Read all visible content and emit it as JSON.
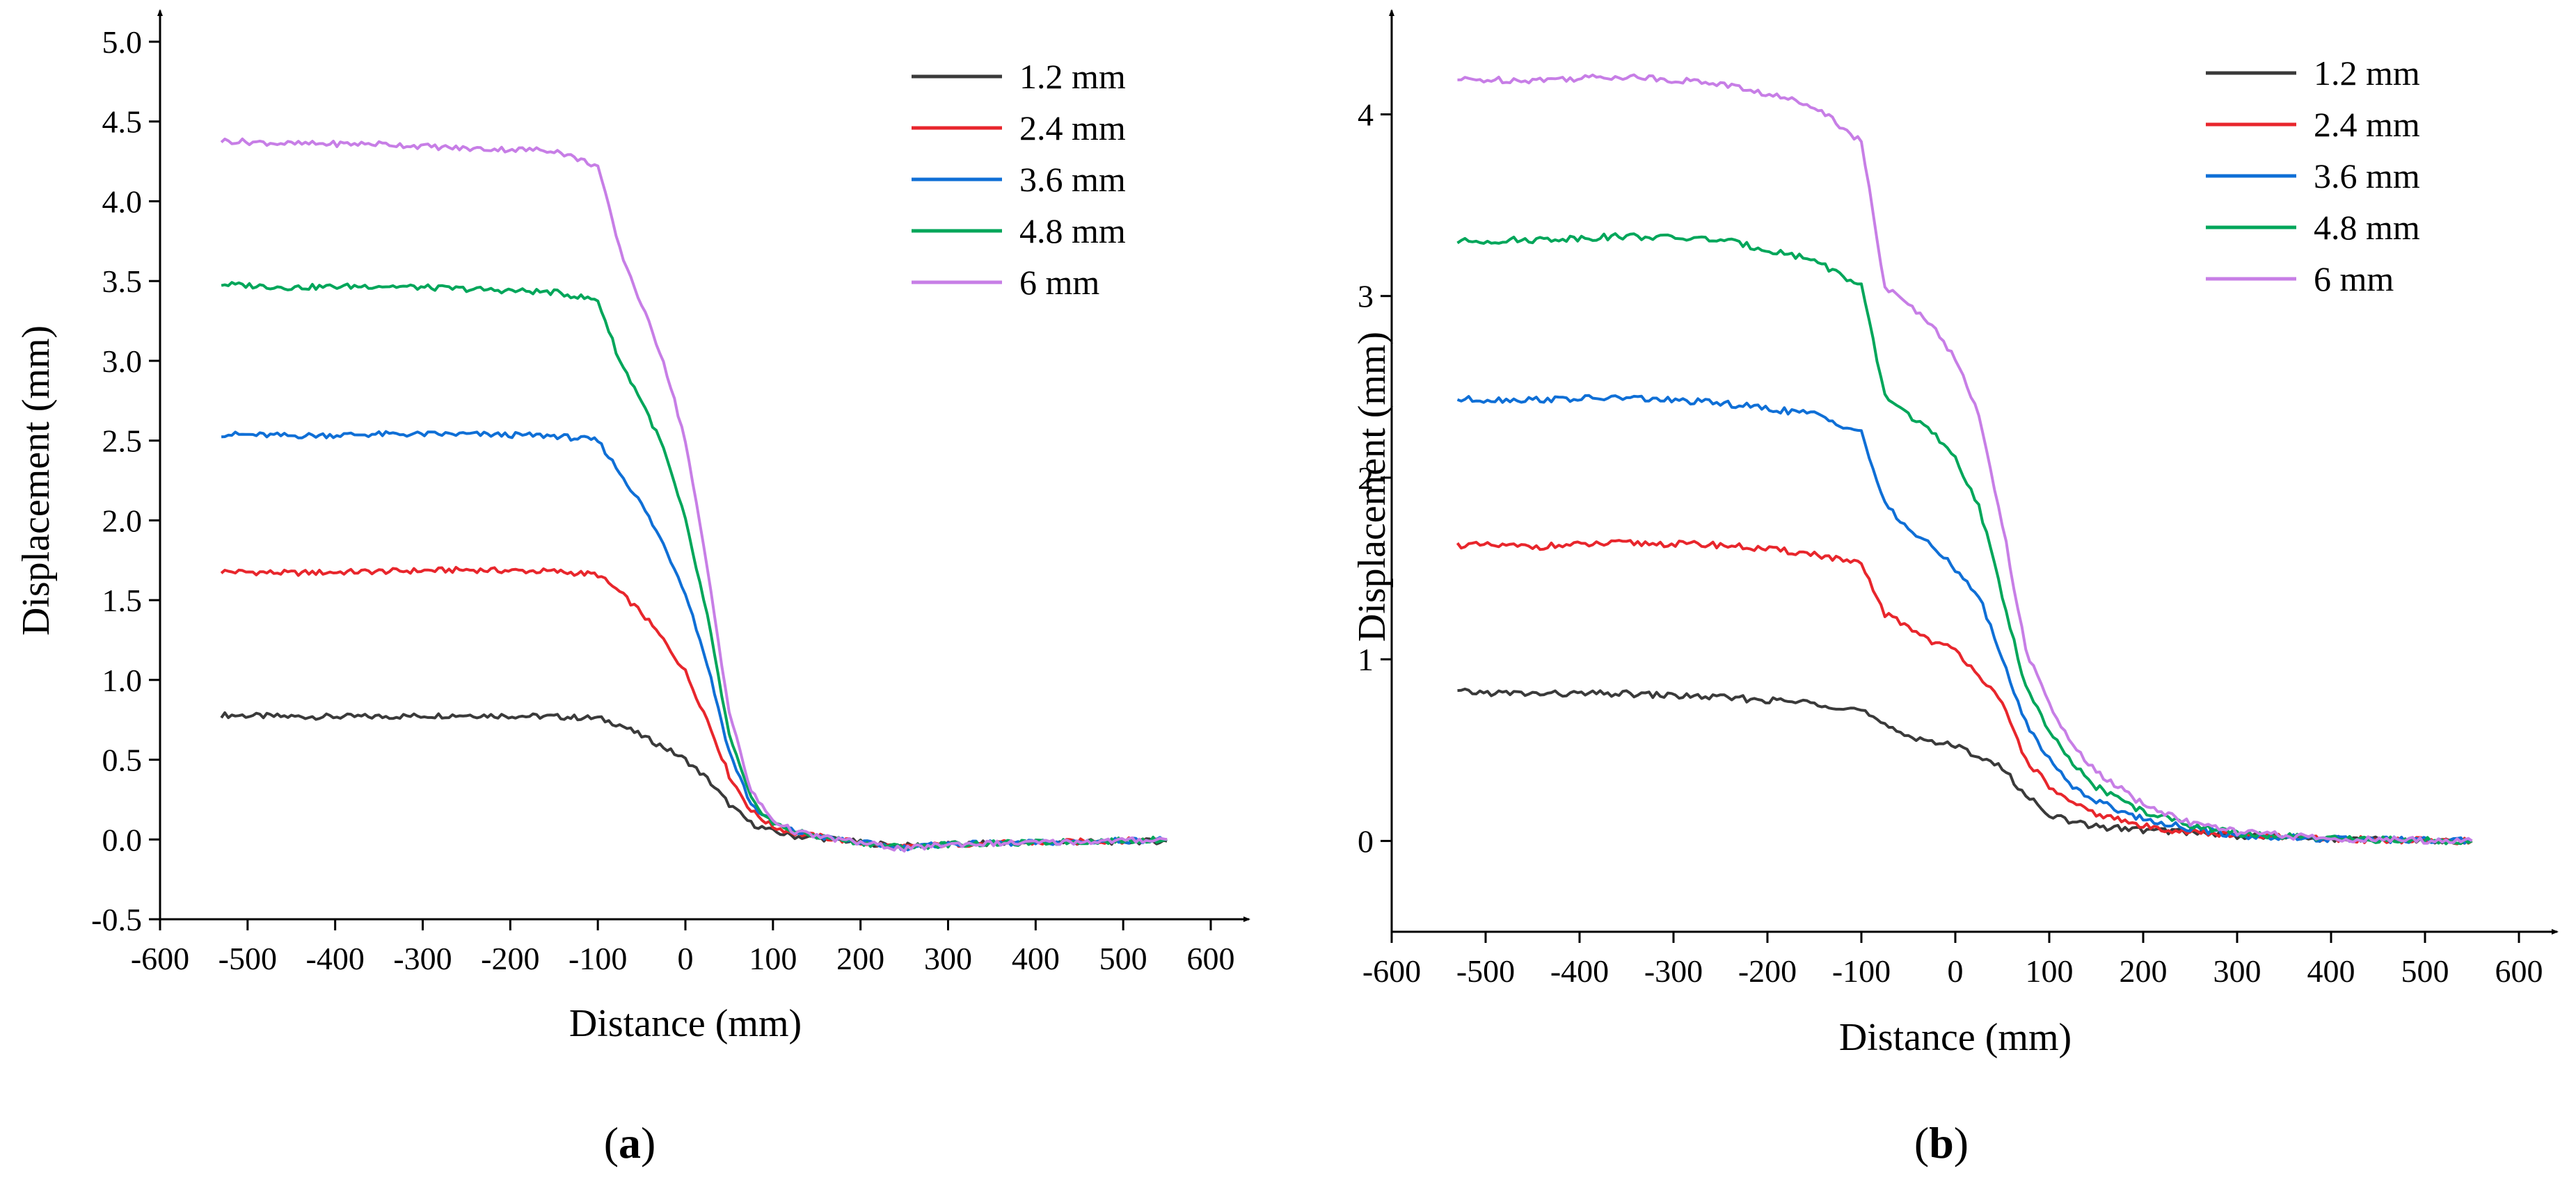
{
  "colors": {
    "1.2 mm": "#3a3a3a",
    "2.4 mm": "#e8262c",
    "3.6 mm": "#0f6fd6",
    "4.8 mm": "#00a65a",
    "6 mm": "#c77ee6"
  },
  "chart_data": [
    {
      "type": "line",
      "caption_open": "(",
      "caption_letter": "a",
      "caption_close": ")",
      "xlabel": "Distance (mm)",
      "ylabel": "Displacement (mm)",
      "xlim": [
        -600,
        600
      ],
      "ylim": [
        -0.5,
        5.0
      ],
      "xticks": [
        -600,
        -500,
        -400,
        -300,
        -200,
        -100,
        0,
        100,
        200,
        300,
        400,
        500,
        600
      ],
      "yticks": [
        "-0.5",
        "0.0",
        "0.5",
        "1.0",
        "1.5",
        "2.0",
        "2.5",
        "3.0",
        "3.5",
        "4.0",
        "4.5",
        "5.0"
      ],
      "legend_position": "top-right",
      "x": [
        -530,
        -450,
        -350,
        -250,
        -150,
        -100,
        -75,
        -50,
        -25,
        0,
        25,
        50,
        75,
        100,
        125,
        150,
        175,
        200,
        250,
        300,
        400,
        550
      ],
      "series": [
        {
          "name": "1.2 mm",
          "values": [
            0.78,
            0.77,
            0.77,
            0.78,
            0.77,
            0.76,
            0.72,
            0.65,
            0.58,
            0.5,
            0.38,
            0.22,
            0.1,
            0.05,
            0.02,
            0.01,
            0.0,
            -0.02,
            -0.04,
            -0.03,
            -0.02,
            -0.01
          ]
        },
        {
          "name": "2.4 mm",
          "values": [
            1.68,
            1.67,
            1.68,
            1.69,
            1.68,
            1.66,
            1.55,
            1.42,
            1.25,
            1.05,
            0.75,
            0.4,
            0.18,
            0.08,
            0.04,
            0.02,
            0.0,
            -0.02,
            -0.05,
            -0.03,
            -0.02,
            0.0
          ]
        },
        {
          "name": "3.6 mm",
          "values": [
            2.54,
            2.53,
            2.54,
            2.54,
            2.53,
            2.5,
            2.3,
            2.1,
            1.85,
            1.55,
            1.1,
            0.55,
            0.22,
            0.1,
            0.05,
            0.02,
            0.0,
            -0.02,
            -0.05,
            -0.03,
            -0.02,
            0.0
          ]
        },
        {
          "name": "4.8 mm",
          "values": [
            3.48,
            3.46,
            3.47,
            3.45,
            3.43,
            3.38,
            3.0,
            2.75,
            2.45,
            2.0,
            1.4,
            0.65,
            0.25,
            0.1,
            0.05,
            0.02,
            0.0,
            -0.02,
            -0.05,
            -0.03,
            -0.02,
            0.0
          ]
        },
        {
          "name": "6 mm",
          "values": [
            4.38,
            4.36,
            4.36,
            4.33,
            4.32,
            4.22,
            3.7,
            3.35,
            3.0,
            2.5,
            1.7,
            0.8,
            0.3,
            0.12,
            0.05,
            0.02,
            0.0,
            -0.02,
            -0.06,
            -0.03,
            -0.02,
            0.0
          ]
        }
      ]
    },
    {
      "type": "line",
      "caption_open": "(",
      "caption_letter": "b",
      "caption_close": ")",
      "xlabel": "Distance (mm)",
      "ylabel": "Displacement (mm)",
      "xlim": [
        -600,
        600
      ],
      "ylim": [
        -0.5,
        4.4
      ],
      "xticks": [
        -600,
        -500,
        -400,
        -300,
        -200,
        -100,
        0,
        100,
        200,
        300,
        400,
        500,
        600
      ],
      "yticks": [
        "0",
        "1",
        "2",
        "3",
        "4"
      ],
      "legend_position": "top-right",
      "x": [
        -530,
        -450,
        -350,
        -250,
        -150,
        -100,
        -75,
        -50,
        -25,
        0,
        25,
        50,
        75,
        100,
        125,
        150,
        200,
        250,
        300,
        400,
        550
      ],
      "series": [
        {
          "name": "1.2 mm",
          "values": [
            0.82,
            0.81,
            0.81,
            0.79,
            0.76,
            0.72,
            0.63,
            0.58,
            0.55,
            0.52,
            0.47,
            0.4,
            0.25,
            0.15,
            0.1,
            0.08,
            0.06,
            0.05,
            0.03,
            0.01,
            0.0
          ]
        },
        {
          "name": "2.4 mm",
          "values": [
            1.63,
            1.62,
            1.64,
            1.63,
            1.58,
            1.52,
            1.25,
            1.18,
            1.1,
            1.05,
            0.92,
            0.75,
            0.45,
            0.3,
            0.2,
            0.15,
            0.08,
            0.05,
            0.03,
            0.01,
            0.0
          ]
        },
        {
          "name": "3.6 mm",
          "values": [
            2.43,
            2.43,
            2.44,
            2.41,
            2.35,
            2.25,
            1.85,
            1.72,
            1.62,
            1.5,
            1.35,
            1.0,
            0.65,
            0.45,
            0.3,
            0.22,
            0.12,
            0.07,
            0.03,
            0.01,
            0.0
          ]
        },
        {
          "name": "4.8 mm",
          "values": [
            3.3,
            3.31,
            3.33,
            3.31,
            3.2,
            3.05,
            2.45,
            2.35,
            2.25,
            2.1,
            1.85,
            1.35,
            0.85,
            0.6,
            0.42,
            0.3,
            0.16,
            0.09,
            0.04,
            0.01,
            0.0
          ]
        },
        {
          "name": "6 mm",
          "values": [
            4.19,
            4.19,
            4.21,
            4.17,
            4.05,
            3.85,
            3.05,
            2.95,
            2.85,
            2.65,
            2.35,
            1.75,
            1.05,
            0.75,
            0.52,
            0.38,
            0.2,
            0.1,
            0.05,
            0.01,
            0.0
          ]
        }
      ]
    }
  ]
}
